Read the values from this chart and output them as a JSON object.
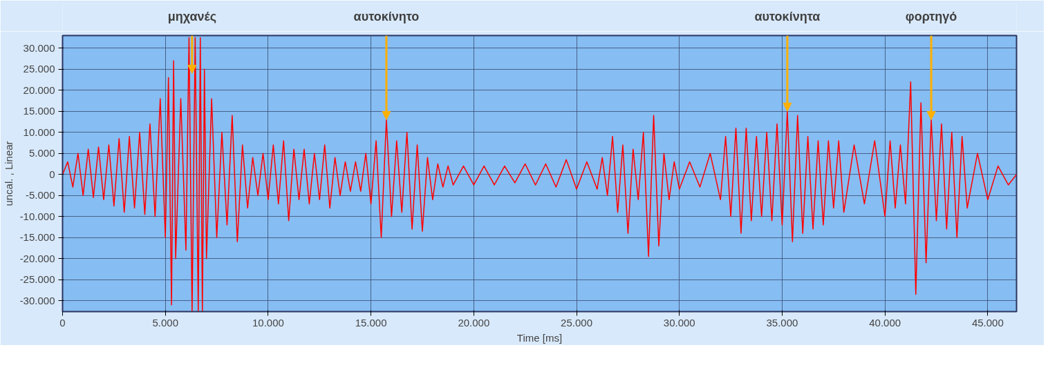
{
  "chart_data": {
    "type": "line",
    "xlabel": "Time [ms]",
    "ylabel": "uncal. , Linear",
    "xlim": [
      0,
      46400
    ],
    "ylim": [
      -32600,
      33000
    ],
    "xticks": [
      {
        "value": 0,
        "label": "0"
      },
      {
        "value": 5000,
        "label": "5.000"
      },
      {
        "value": 10000,
        "label": "10.000"
      },
      {
        "value": 15000,
        "label": "15.000"
      },
      {
        "value": 20000,
        "label": "20.000"
      },
      {
        "value": 25000,
        "label": "25.000"
      },
      {
        "value": 30000,
        "label": "30.000"
      },
      {
        "value": 35000,
        "label": "35.000"
      },
      {
        "value": 40000,
        "label": "40.000"
      },
      {
        "value": 45000,
        "label": "45.000"
      }
    ],
    "yticks": [
      {
        "value": -30000,
        "label": "-30.000"
      },
      {
        "value": -25000,
        "label": "-25.000"
      },
      {
        "value": -20000,
        "label": "-20.000"
      },
      {
        "value": -15000,
        "label": "-15.000"
      },
      {
        "value": -10000,
        "label": "-10.000"
      },
      {
        "value": -5000,
        "label": "-5.000"
      },
      {
        "value": 0,
        "label": "0"
      },
      {
        "value": 5000,
        "label": "5.000"
      },
      {
        "value": 10000,
        "label": "10.000"
      },
      {
        "value": 15000,
        "label": "15.000"
      },
      {
        "value": 20000,
        "label": "20.000"
      },
      {
        "value": 25000,
        "label": "25.000"
      },
      {
        "value": 30000,
        "label": "30.000"
      }
    ],
    "grid": true,
    "series": [
      {
        "color": "#ff0000",
        "x": [
          0,
          250,
          500,
          750,
          1000,
          1250,
          1500,
          1750,
          2000,
          2250,
          2500,
          2750,
          3000,
          3250,
          3500,
          3750,
          4000,
          4250,
          4500,
          4750,
          5000,
          5150,
          5300,
          5400,
          5500,
          5750,
          6000,
          6150,
          6300,
          6450,
          6600,
          6700,
          6800,
          6900,
          7000,
          7250,
          7500,
          7750,
          8000,
          8250,
          8500,
          8750,
          9000,
          9250,
          9500,
          9750,
          10000,
          10250,
          10500,
          10750,
          11000,
          11250,
          11500,
          11750,
          12000,
          12250,
          12500,
          12750,
          13000,
          13250,
          13500,
          13750,
          14000,
          14250,
          14500,
          14750,
          15000,
          15250,
          15500,
          15750,
          16000,
          16250,
          16500,
          16750,
          17000,
          17250,
          17500,
          17750,
          18000,
          18250,
          18500,
          18750,
          19000,
          19500,
          20000,
          20500,
          21000,
          21500,
          22000,
          22500,
          23000,
          23500,
          24000,
          24500,
          25000,
          25500,
          26000,
          26250,
          26500,
          26750,
          27000,
          27250,
          27500,
          27750,
          28000,
          28250,
          28500,
          28750,
          29000,
          29250,
          29500,
          29750,
          30000,
          30500,
          31000,
          31500,
          32000,
          32250,
          32500,
          32750,
          33000,
          33250,
          33500,
          33750,
          34000,
          34250,
          34500,
          34750,
          35000,
          35250,
          35500,
          35750,
          36000,
          36250,
          36500,
          36750,
          37000,
          37250,
          37500,
          37750,
          38000,
          38500,
          39000,
          39500,
          40000,
          40250,
          40500,
          40750,
          41000,
          41250,
          41500,
          41750,
          42000,
          42250,
          42500,
          42750,
          43000,
          43250,
          43500,
          43750,
          44000,
          44500,
          45000,
          45500,
          46000,
          46400
        ],
        "values": [
          0,
          3000,
          -3000,
          5000,
          -5000,
          6000,
          -5500,
          6500,
          -6000,
          7000,
          -7500,
          8500,
          -9000,
          9000,
          -8000,
          10000,
          -9500,
          12000,
          -10000,
          18000,
          -15000,
          23000,
          -31000,
          27000,
          -20000,
          18000,
          -18000,
          32500,
          -32500,
          32500,
          -32500,
          32500,
          -32500,
          25000,
          -20000,
          18000,
          -15000,
          10000,
          -12000,
          14000,
          -16000,
          7000,
          -8000,
          4000,
          -5000,
          5000,
          -6000,
          7000,
          -7000,
          8000,
          -11000,
          6000,
          -6000,
          6000,
          -7000,
          5000,
          -6000,
          7000,
          -8000,
          4000,
          -5000,
          3000,
          -4000,
          3000,
          -4000,
          5000,
          -7000,
          8000,
          -15000,
          13000,
          -10000,
          8000,
          -9000,
          10000,
          -13000,
          7000,
          -13500,
          4000,
          -6000,
          2500,
          -3000,
          2000,
          -2500,
          2000,
          -2500,
          2000,
          -2500,
          2000,
          -2000,
          2500,
          -2500,
          2500,
          -3000,
          3500,
          -3500,
          3000,
          -3500,
          4000,
          -5000,
          9000,
          -9000,
          7000,
          -14000,
          6000,
          -6000,
          10000,
          -19500,
          14000,
          -17000,
          5000,
          -6000,
          3000,
          -3500,
          3000,
          -3000,
          5000,
          -6000,
          9000,
          -10000,
          11000,
          -14000,
          11000,
          -11000,
          9000,
          -10000,
          10000,
          -11000,
          12000,
          -12000,
          15000,
          -16000,
          14000,
          -14000,
          9000,
          -13000,
          8000,
          -12000,
          8000,
          -8000,
          8000,
          -9000,
          7000,
          -7000,
          8000,
          -10000,
          8000,
          -8000,
          7000,
          -7000,
          22000,
          -28500,
          17000,
          -21000,
          13000,
          -11000,
          12000,
          -13000,
          10000,
          -15000,
          9000,
          -8000,
          5000,
          -6000,
          2000,
          -2500,
          0
        ]
      }
    ],
    "annotations": [
      {
        "text": "μηχανές",
        "x": 6300,
        "y": 24000
      },
      {
        "text": "αυτοκίνητο",
        "x": 15750,
        "y": 13000
      },
      {
        "text": "αυτοκίνητα",
        "x": 35250,
        "y": 15000
      },
      {
        "text": "φορτηγό",
        "x": 42250,
        "y": 13000
      }
    ]
  }
}
